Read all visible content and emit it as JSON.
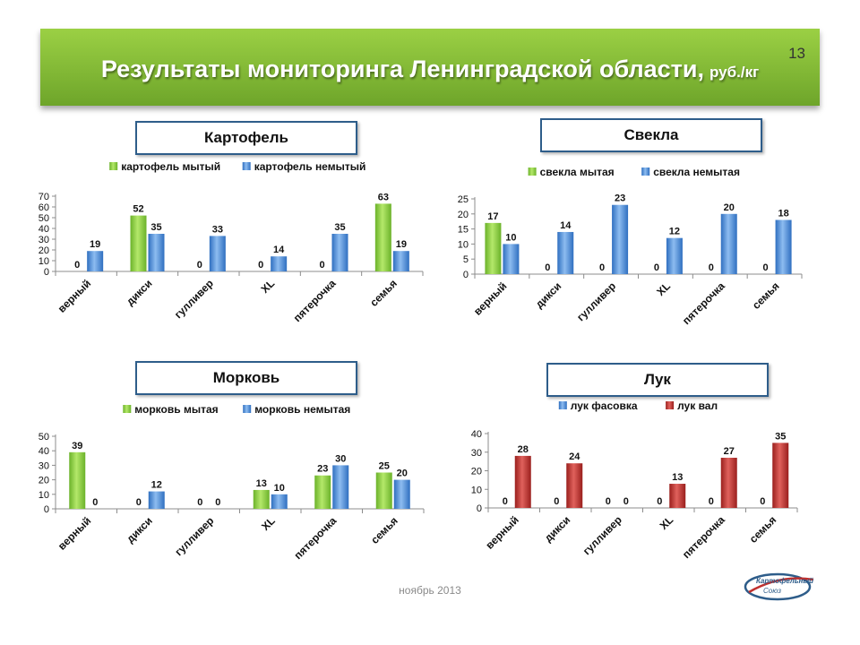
{
  "header": {
    "title": "Результаты мониторинга Ленинградской области,",
    "unit": "руб./кг",
    "slide_number": "13"
  },
  "footer": {
    "date": "ноябрь 2013"
  },
  "logo": {
    "text_line1": "Картофельный",
    "text_line2": "Союз"
  },
  "colors": {
    "green": "#8fd13f",
    "blue": "#4f8fd6",
    "red": "#c0302e",
    "title_border": "#2e5d8a"
  },
  "chart_data": [
    {
      "type": "bar",
      "title": "Картофель",
      "categories": [
        "верный",
        "дикси",
        "гулливер",
        "XL",
        "пятерочка",
        "семья"
      ],
      "series": [
        {
          "name": "картофель мытый",
          "color": "green",
          "values": [
            0,
            52,
            0,
            0,
            0,
            63
          ]
        },
        {
          "name": "картофель немытый",
          "color": "blue",
          "values": [
            19,
            35,
            33,
            14,
            35,
            19
          ]
        }
      ],
      "ylim": [
        0,
        70
      ],
      "yticks": [
        0,
        10,
        20,
        30,
        40,
        50,
        60,
        70
      ],
      "legend": "top"
    },
    {
      "type": "bar",
      "title": "Свекла",
      "categories": [
        "верный",
        "дикси",
        "гулливер",
        "XL",
        "пятерочка",
        "семья"
      ],
      "series": [
        {
          "name": "свекла мытая",
          "color": "green",
          "values": [
            17,
            0,
            0,
            0,
            0,
            0
          ]
        },
        {
          "name": "свекла немытая",
          "color": "blue",
          "values": [
            10,
            14,
            23,
            12,
            20,
            18
          ]
        }
      ],
      "ylim": [
        0,
        25
      ],
      "yticks": [
        0,
        5,
        10,
        15,
        20,
        25
      ],
      "legend": "top"
    },
    {
      "type": "bar",
      "title": "Морковь",
      "categories": [
        "верный",
        "дикси",
        "гулливер",
        "XL",
        "пятерочка",
        "семья"
      ],
      "series": [
        {
          "name": "морковь мытая",
          "color": "green",
          "values": [
            39,
            0,
            0,
            13,
            23,
            25
          ]
        },
        {
          "name": "морковь немытая",
          "color": "blue",
          "values": [
            0,
            12,
            0,
            10,
            30,
            20
          ]
        }
      ],
      "ylim": [
        0,
        50
      ],
      "yticks": [
        0,
        10,
        20,
        30,
        40,
        50
      ],
      "legend": "top"
    },
    {
      "type": "bar",
      "title": "Лук",
      "categories": [
        "верный",
        "дикси",
        "гулливер",
        "XL",
        "пятерочка",
        "семья"
      ],
      "series": [
        {
          "name": "лук фасовка",
          "color": "blue",
          "values": [
            0,
            0,
            0,
            0,
            0,
            0
          ]
        },
        {
          "name": "лук вал",
          "color": "red",
          "values": [
            28,
            24,
            0,
            13,
            27,
            35
          ]
        }
      ],
      "ylim": [
        0,
        40
      ],
      "yticks": [
        0,
        10,
        20,
        30,
        40
      ],
      "legend": "top"
    }
  ]
}
